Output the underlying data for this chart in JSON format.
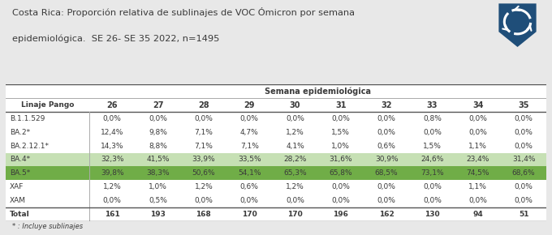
{
  "title_line1": "Costa Rica: Proporción relativa de sublinajes de VOC Ómicron por semana",
  "title_line2": "epidemiológica.  SE 26- SE 35 2022, n=1495",
  "header_group": "Semana epidemiológica",
  "col_header": "Linaje Pango",
  "weeks": [
    "26",
    "27",
    "28",
    "29",
    "30",
    "31",
    "32",
    "33",
    "34",
    "35"
  ],
  "rows": [
    {
      "label": "B.1.1.529",
      "values": [
        "0,0%",
        "0,0%",
        "0,0%",
        "0,0%",
        "0,0%",
        "0,0%",
        "0,0%",
        "0,8%",
        "0,0%",
        "0,0%"
      ],
      "highlight": "none"
    },
    {
      "label": "BA.2*",
      "values": [
        "12,4%",
        "9,8%",
        "7,1%",
        "4,7%",
        "1,2%",
        "1,5%",
        "0,0%",
        "0,0%",
        "0,0%",
        "0,0%"
      ],
      "highlight": "none"
    },
    {
      "label": "BA.2.12.1*",
      "values": [
        "14,3%",
        "8,8%",
        "7,1%",
        "7,1%",
        "4,1%",
        "1,0%",
        "0,6%",
        "1,5%",
        "1,1%",
        "0,0%"
      ],
      "highlight": "none"
    },
    {
      "label": "BA.4*",
      "values": [
        "32,3%",
        "41,5%",
        "33,9%",
        "33,5%",
        "28,2%",
        "31,6%",
        "30,9%",
        "24,6%",
        "23,4%",
        "31,4%"
      ],
      "highlight": "light_green"
    },
    {
      "label": "BA.5*",
      "values": [
        "39,8%",
        "38,3%",
        "50,6%",
        "54,1%",
        "65,3%",
        "65,8%",
        "68,5%",
        "73,1%",
        "74,5%",
        "68,6%"
      ],
      "highlight": "green"
    },
    {
      "label": "XAF",
      "values": [
        "1,2%",
        "1,0%",
        "1,2%",
        "0,6%",
        "1,2%",
        "0,0%",
        "0,0%",
        "0,0%",
        "1,1%",
        "0,0%"
      ],
      "highlight": "none"
    },
    {
      "label": "XAM",
      "values": [
        "0,0%",
        "0,5%",
        "0,0%",
        "0,0%",
        "0,0%",
        "0,0%",
        "0,0%",
        "0,0%",
        "0,0%",
        "0,0%"
      ],
      "highlight": "none"
    }
  ],
  "totals": [
    "161",
    "193",
    "168",
    "170",
    "170",
    "196",
    "162",
    "130",
    "94",
    "51"
  ],
  "footnote": "* : Incluye sublinajes",
  "color_none": "#ffffff",
  "color_light_green": "#c6e0b4",
  "color_green": "#70ad47",
  "color_text": "#3a3a3a",
  "color_total_bg": "#ffffff",
  "logo_bg": "#1f4e79",
  "bg_color": "#e8e8e8",
  "table_bg": "#ffffff",
  "line_color": "#aaaaaa",
  "bold_line_color": "#555555"
}
